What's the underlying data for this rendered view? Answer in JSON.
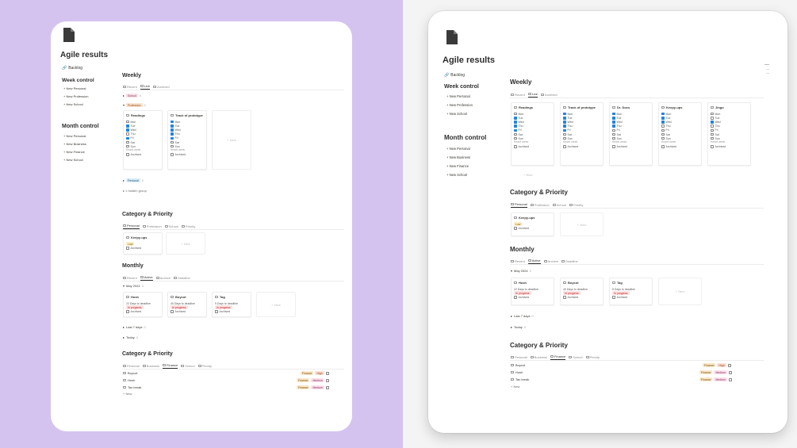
{
  "page": {
    "title": "Agile results",
    "backlog_link": "Backlog"
  },
  "sidebar": {
    "week_heading": "Week control",
    "week_items": [
      "New Personal",
      "New Profession",
      "New School"
    ],
    "month_heading": "Month control",
    "month_items": [
      "New Personal",
      "New Business",
      "New Finance",
      "New School"
    ]
  },
  "weekly": {
    "heading": "Weekly",
    "tabs": [
      "Recent",
      "Live",
      "Archived"
    ],
    "active_tab": "Live",
    "groups": [
      {
        "label": "School",
        "count": "0"
      },
      {
        "label": "Profession",
        "count": "2"
      },
      {
        "label": "Personal",
        "count": "0"
      }
    ],
    "hidden_group": "1 hidden group",
    "days": [
      "Mon",
      "Tue",
      "Wed",
      "Thu",
      "Fri",
      "Sat",
      "Sun"
    ],
    "reset_label": "Reset week",
    "archived_label": "Archived",
    "new_label": "+ New",
    "cards": [
      {
        "title": "Readings",
        "checked": [
          true,
          true,
          true,
          true,
          true,
          false,
          false
        ]
      },
      {
        "title": "Track of prototype",
        "checked": [
          true,
          true,
          true,
          true,
          true,
          false,
          false
        ]
      },
      {
        "title": "Dr. Docs",
        "checked": [
          true,
          true,
          true,
          true,
          false,
          false,
          false
        ]
      },
      {
        "title": "Keepy-ups",
        "checked": [
          true,
          true,
          true,
          false,
          false,
          false,
          false
        ]
      },
      {
        "title": "Jingo",
        "checked": [
          false,
          false,
          true,
          false,
          false,
          false,
          false
        ]
      }
    ]
  },
  "category_priority_1": {
    "heading": "Category & Priority",
    "tabs": [
      "Personal",
      "Profession",
      "School",
      "Priority"
    ],
    "active_tab": "Personal",
    "card": {
      "title": "Keepy-ups",
      "badge": "Low",
      "check_label": "Archived"
    },
    "new_label": "+ New"
  },
  "monthly": {
    "heading": "Monthly",
    "tabs": [
      "Recent",
      "Active",
      "Archive",
      "Deadline"
    ],
    "active_tab": "Active",
    "group": {
      "label": "May 2024",
      "count": "3"
    },
    "cards": [
      {
        "title": "Hush",
        "deadline": "22 Days to deadline",
        "status": "In progress",
        "check_label": "Archived"
      },
      {
        "title": "Boycot",
        "deadline": "40 Days to deadline",
        "status": "In progress",
        "check_label": "Archived"
      },
      {
        "title": "Tag",
        "deadline": "5 Days to deadline",
        "status": "In progress",
        "check_label": "Archived"
      }
    ],
    "new_label": "+ New",
    "collapsed_groups": [
      {
        "label": "Last 7 days",
        "count": "0"
      },
      {
        "label": "Today",
        "count": "0"
      }
    ]
  },
  "category_priority_2": {
    "heading": "Category & Priority",
    "tabs": [
      "Personal",
      "Business",
      "Finance",
      "School",
      "Priority"
    ],
    "active_tab": "Finance",
    "rows": [
      {
        "title": "Boycot",
        "category": "Finance",
        "priority": "High"
      },
      {
        "title": "Hush",
        "category": "Finance",
        "priority": "Medium"
      },
      {
        "title": "Tax break",
        "category": "Finance",
        "priority": "Medium"
      }
    ],
    "new_label": "+ New"
  },
  "colors": {
    "left_background": "#d5c3ef",
    "right_background": "#f4f4f4",
    "checkbox_blue": "#2383e2"
  },
  "icons": [
    "document-icon",
    "link-icon",
    "plus-icon",
    "table-icon",
    "triangle-icon",
    "checkbox-icon"
  ]
}
